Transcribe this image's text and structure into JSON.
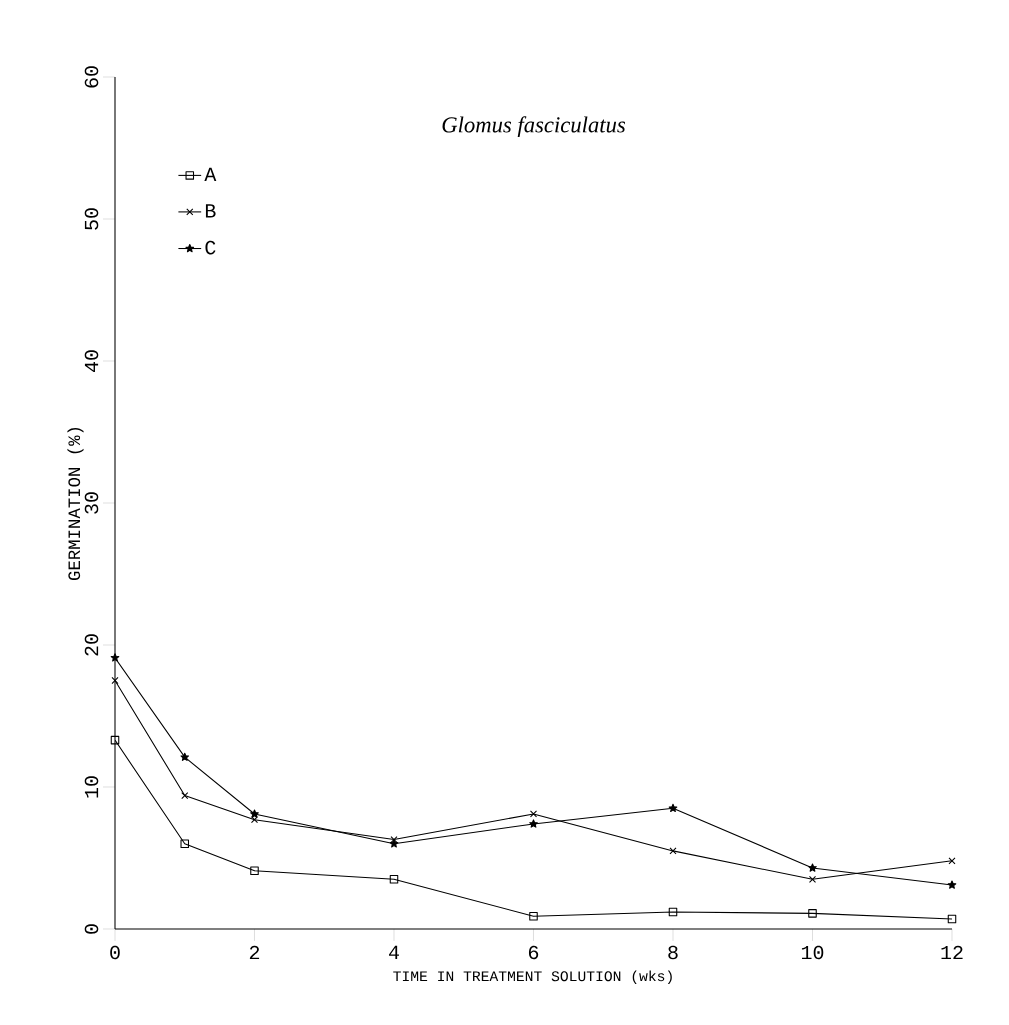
{
  "chart_data": {
    "type": "line",
    "title": "Glomus fasciculatus",
    "xlabel": "TIME IN TREATMENT SOLUTION (wks)",
    "ylabel": "GERMINATION (%)",
    "x": [
      0,
      1,
      2,
      4,
      6,
      8,
      10,
      12
    ],
    "series": [
      {
        "name": "A",
        "color": "#000000",
        "marker": "square",
        "values": [
          13.3,
          6.0,
          4.1,
          3.5,
          0.9,
          1.2,
          1.1,
          0.7
        ]
      },
      {
        "name": "B",
        "color": "#000000",
        "marker": "cross",
        "values": [
          17.5,
          9.4,
          7.7,
          6.3,
          8.1,
          5.5,
          3.5,
          4.8
        ]
      },
      {
        "name": "C",
        "color": "#000000",
        "marker": "star",
        "values": [
          19.1,
          12.1,
          8.1,
          6.0,
          7.4,
          8.5,
          4.3,
          3.1
        ]
      }
    ],
    "xlim": [
      0,
      12
    ],
    "ylim": [
      0,
      60
    ],
    "xticks": [
      0,
      2,
      4,
      6,
      8,
      10,
      12
    ],
    "yticks": [
      0,
      10,
      20,
      30,
      40,
      50,
      60
    ],
    "grid": false,
    "legend": "top left",
    "line_style": "solid"
  }
}
